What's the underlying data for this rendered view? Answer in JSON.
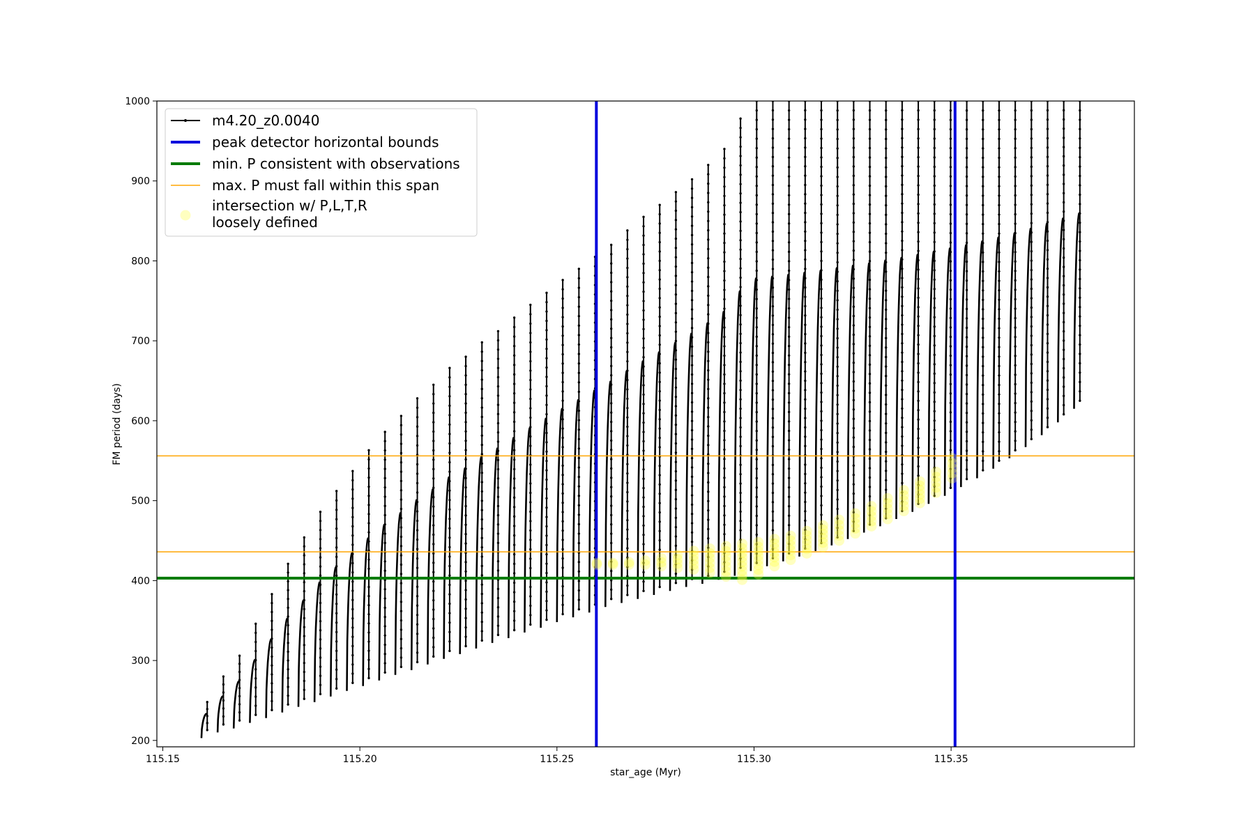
{
  "chart_data": {
    "type": "line",
    "xlabel": "star_age (Myr)",
    "ylabel": "FM period (days)",
    "xlim": [
      115.1485,
      115.3965
    ],
    "ylim": [
      192,
      1000
    ],
    "xticks": [
      115.15,
      115.2,
      115.25,
      115.3,
      115.35
    ],
    "xtick_labels": [
      "115.15",
      "115.20",
      "115.25",
      "115.30",
      "115.35"
    ],
    "yticks": [
      200,
      300,
      400,
      500,
      600,
      700,
      800,
      900,
      1000
    ],
    "ytick_labels": [
      "200",
      "300",
      "400",
      "500",
      "600",
      "700",
      "800",
      "900",
      "1000"
    ],
    "grid": false,
    "legend_position": "top-left",
    "series": [
      {
        "name": "m4.20_z0.0040",
        "kind": "pulsation-cycles",
        "color": "#000000",
        "cycles_start_age": [
          115.1598,
          115.1639,
          115.168,
          115.1721,
          115.1762,
          115.1803,
          115.1844,
          115.1885,
          115.1926,
          115.1967,
          115.2008,
          115.2049,
          115.209,
          115.2131,
          115.2172,
          115.2213,
          115.2254,
          115.2295,
          115.2336,
          115.2377,
          115.2418,
          115.2459,
          115.25,
          115.2541,
          115.2582,
          115.2623,
          115.2664,
          115.2705,
          115.2746,
          115.2787,
          115.2828,
          115.2869,
          115.291,
          115.2951,
          115.2992,
          115.3033,
          115.3074,
          115.3115,
          115.3156,
          115.3197,
          115.3238,
          115.3279,
          115.332,
          115.3361,
          115.3402,
          115.3443,
          115.3484,
          115.3525,
          115.3566,
          115.3607,
          115.3648,
          115.3689,
          115.373,
          115.3771,
          115.3812
        ],
        "cycles_min_period": [
          203,
          210,
          215,
          222,
          228,
          235,
          242,
          248,
          255,
          262,
          268,
          275,
          282,
          288,
          295,
          302,
          308,
          315,
          322,
          328,
          335,
          341,
          348,
          354,
          360,
          367,
          372,
          377,
          382,
          387,
          392,
          396,
          401,
          406,
          412,
          418,
          424,
          430,
          437,
          444,
          452,
          460,
          468,
          477,
          486,
          496,
          506,
          517,
          528,
          540,
          553,
          567,
          582,
          598,
          615
        ],
        "cycles_peak_period": [
          248,
          280,
          306,
          346,
          383,
          421,
          454,
          486,
          512,
          537,
          563,
          586,
          606,
          628,
          645,
          666,
          680,
          698,
          712,
          729,
          745,
          760,
          776,
          790,
          805,
          820,
          838,
          855,
          870,
          886,
          902,
          920,
          940,
          978,
          1000,
          1000,
          1000,
          1000,
          1000,
          1000,
          1000,
          1000,
          1000,
          1000,
          1000,
          1000,
          1000,
          1000,
          1000,
          1000,
          1000,
          1000,
          1000,
          1000,
          1000
        ],
        "x": [
          115.1598,
          115.168,
          115.1762,
          115.1844,
          115.1926,
          115.2008,
          115.209,
          115.2172,
          115.2254,
          115.2336,
          115.2418,
          115.25,
          115.2582,
          115.2664,
          115.2746,
          115.2828,
          115.291,
          115.2992,
          115.3074,
          115.3156,
          115.3238,
          115.332,
          115.3402,
          115.3484,
          115.3566,
          115.3648,
          115.373,
          115.3812,
          115.3852
        ],
        "y": [
          203,
          290,
          318,
          345,
          370,
          398,
          438,
          462,
          482,
          497,
          518,
          548,
          563,
          584,
          606,
          627,
          650,
          675,
          702,
          730,
          760,
          790,
          818,
          850,
          888,
          932,
          975,
          1000,
          1000
        ]
      },
      {
        "name": "peak detector horizontal bounds",
        "kind": "vline",
        "color": "#0000dd",
        "x": [
          115.26,
          115.351
        ]
      },
      {
        "name": "min. P consistent with observations",
        "kind": "hline",
        "color": "#007a00",
        "y": [
          403
        ]
      },
      {
        "name": "max. P must fall within this span",
        "kind": "hline",
        "color": "#ffa500",
        "y": [
          436,
          556
        ]
      },
      {
        "name": "intersection w/ P,L,T,R\nloosely defined",
        "kind": "scatter",
        "color": "#ffff3c",
        "x": [
          115.2601,
          115.2642,
          115.2683,
          115.2724,
          115.2765,
          115.2806,
          115.2847,
          115.2888,
          115.2929,
          115.297,
          115.3011,
          115.3052,
          115.3093,
          115.3134,
          115.3175,
          115.3216,
          115.3257,
          115.3298,
          115.3339,
          115.338,
          115.3421,
          115.3462,
          115.3503
        ],
        "y": [
          422,
          422,
          423,
          425,
          428,
          432,
          437,
          440,
          443,
          446,
          448,
          452,
          456,
          462,
          469,
          476,
          484,
          493,
          503,
          513,
          524,
          536,
          553
        ],
        "ymin": [
          420,
          420,
          420,
          420,
          418,
          416,
          414,
          410,
          405,
          401,
          408,
          418,
          426,
          434,
          442,
          450,
          459,
          468,
          477,
          487,
          497,
          510,
          528
        ]
      }
    ]
  }
}
